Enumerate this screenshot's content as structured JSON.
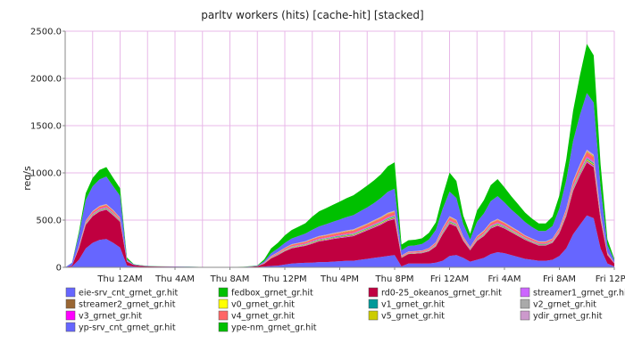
{
  "chart_data": {
    "type": "area",
    "stacked": true,
    "title": "parltv workers (hits) [cache-hit] [stacked]",
    "ylabel": "req/s",
    "xlabel": "",
    "ylim": [
      0,
      2500
    ],
    "yticks": [
      {
        "v": 0,
        "label": "0"
      },
      {
        "v": 500,
        "label": "500.0"
      },
      {
        "v": 1000,
        "label": "1000.0"
      },
      {
        "v": 1500,
        "label": "1500.0"
      },
      {
        "v": 2000,
        "label": "2000.0"
      },
      {
        "v": 2500,
        "label": "2500.0"
      }
    ],
    "xticks": [
      {
        "h": 4,
        "label": "Thu 12AM"
      },
      {
        "h": 8,
        "label": "Thu  4AM"
      },
      {
        "h": 12,
        "label": "Thu  8AM"
      },
      {
        "h": 16,
        "label": "Thu 12PM"
      },
      {
        "h": 20,
        "label": "Thu  4PM"
      },
      {
        "h": 24,
        "label": "Thu  8PM"
      },
      {
        "h": 28,
        "label": "Fri 12AM"
      },
      {
        "h": 32,
        "label": "Fri  4AM"
      },
      {
        "h": 36,
        "label": "Fri  8AM"
      },
      {
        "h": 40,
        "label": "Fri 12PM"
      }
    ],
    "xlim": [
      0,
      40
    ],
    "grid": true,
    "legend_position": "bottom",
    "x_hours": [
      0,
      0.5,
      1,
      1.5,
      2,
      2.5,
      3,
      3.5,
      4,
      4.5,
      5,
      5.5,
      6,
      7,
      8,
      9,
      10,
      11,
      12,
      13,
      14,
      14.5,
      15,
      15.5,
      16,
      16.5,
      17,
      17.5,
      18,
      18.5,
      19,
      19.5,
      20,
      20.5,
      21,
      21.5,
      22,
      22.5,
      23,
      23.5,
      24,
      24.5,
      25,
      25.5,
      26,
      26.5,
      27,
      27.5,
      28,
      28.5,
      29,
      29.5,
      30,
      30.5,
      31,
      31.5,
      32,
      32.5,
      33,
      33.5,
      34,
      34.5,
      35,
      35.5,
      36,
      36.5,
      37,
      37.5,
      38,
      38.5,
      39,
      39.5,
      40
    ],
    "series": [
      {
        "name": "eie-srv_cnt_grnet_gr.hit",
        "color": "#6666ff",
        "values": [
          0,
          8,
          80,
          200,
          260,
          290,
          300,
          260,
          210,
          20,
          8,
          5,
          4,
          3,
          3,
          2,
          1,
          1,
          1,
          1,
          3,
          8,
          14,
          18,
          30,
          40,
          45,
          48,
          50,
          55,
          55,
          60,
          65,
          70,
          70,
          80,
          90,
          100,
          110,
          120,
          130,
          10,
          40,
          40,
          40,
          40,
          50,
          70,
          120,
          130,
          100,
          60,
          80,
          100,
          140,
          160,
          150,
          130,
          110,
          90,
          80,
          70,
          70,
          80,
          120,
          200,
          350,
          450,
          550,
          520,
          200,
          40,
          10
        ]
      },
      {
        "name": "fedbox_grnet_gr.hit",
        "color": "#00c000",
        "values": [
          0,
          0,
          0,
          0,
          0,
          0,
          0,
          0,
          0,
          0,
          0,
          0,
          0,
          0,
          0,
          0,
          0,
          0,
          0,
          0,
          0,
          0,
          0,
          0,
          0,
          0,
          0,
          0,
          0,
          0,
          0,
          0,
          0,
          0,
          0,
          0,
          0,
          0,
          0,
          0,
          0,
          0,
          0,
          0,
          0,
          0,
          0,
          0,
          0,
          0,
          0,
          0,
          0,
          0,
          0,
          0,
          0,
          0,
          0,
          0,
          0,
          0,
          0,
          0,
          0,
          0,
          0,
          0,
          0,
          0,
          0,
          0,
          0
        ]
      },
      {
        "name": "rd0-25_okeanos_grnet_gr.hit",
        "color": "#c00040",
        "values": [
          0,
          10,
          120,
          250,
          280,
          300,
          310,
          290,
          270,
          40,
          15,
          10,
          6,
          5,
          4,
          3,
          1,
          1,
          1,
          2,
          8,
          30,
          80,
          110,
          140,
          160,
          170,
          180,
          200,
          220,
          230,
          240,
          245,
          250,
          260,
          280,
          300,
          320,
          340,
          370,
          380,
          90,
          100,
          105,
          110,
          130,
          170,
          280,
          340,
          300,
          180,
          120,
          200,
          230,
          270,
          280,
          260,
          240,
          220,
          200,
          180,
          160,
          160,
          180,
          240,
          340,
          460,
          520,
          560,
          540,
          300,
          90,
          30
        ]
      },
      {
        "name": "streamer1_grnet_gr.hit",
        "color": "#cc66ff",
        "values": [
          0,
          0,
          2,
          4,
          5,
          5,
          5,
          5,
          4,
          1,
          0,
          0,
          0,
          0,
          0,
          0,
          0,
          0,
          0,
          0,
          0,
          1,
          2,
          3,
          3,
          4,
          4,
          4,
          5,
          5,
          5,
          5,
          6,
          6,
          6,
          6,
          6,
          7,
          7,
          7,
          8,
          2,
          2,
          2,
          2,
          3,
          4,
          6,
          7,
          6,
          4,
          3,
          4,
          5,
          6,
          6,
          6,
          5,
          5,
          4,
          4,
          4,
          4,
          4,
          5,
          7,
          9,
          10,
          11,
          11,
          6,
          2,
          1
        ]
      },
      {
        "name": "streamer2_grnet_gr.hit",
        "color": "#996633",
        "values": [
          0,
          0,
          2,
          4,
          5,
          5,
          5,
          5,
          4,
          1,
          0,
          0,
          0,
          0,
          0,
          0,
          0,
          0,
          0,
          0,
          0,
          1,
          2,
          3,
          3,
          4,
          4,
          4,
          5,
          5,
          5,
          5,
          6,
          6,
          6,
          6,
          6,
          7,
          7,
          7,
          8,
          2,
          2,
          2,
          2,
          3,
          4,
          6,
          7,
          6,
          4,
          3,
          4,
          5,
          6,
          6,
          6,
          5,
          5,
          4,
          4,
          4,
          4,
          4,
          5,
          7,
          9,
          10,
          11,
          11,
          6,
          2,
          1
        ]
      },
      {
        "name": "v0_grnet_gr.hit",
        "color": "#ffff00",
        "values": [
          0,
          0,
          2,
          3,
          4,
          4,
          4,
          4,
          3,
          1,
          0,
          0,
          0,
          0,
          0,
          0,
          0,
          0,
          0,
          0,
          0,
          1,
          2,
          2,
          3,
          3,
          3,
          3,
          4,
          4,
          4,
          4,
          4,
          5,
          5,
          5,
          5,
          5,
          6,
          6,
          6,
          2,
          2,
          2,
          2,
          2,
          3,
          4,
          5,
          5,
          3,
          2,
          3,
          4,
          4,
          5,
          4,
          4,
          4,
          3,
          3,
          3,
          3,
          3,
          4,
          5,
          7,
          8,
          9,
          9,
          5,
          2,
          1
        ]
      },
      {
        "name": "v1_grnet_gr.hit",
        "color": "#009999",
        "values": [
          0,
          0,
          2,
          4,
          5,
          5,
          5,
          5,
          4,
          1,
          0,
          0,
          0,
          0,
          0,
          0,
          0,
          0,
          0,
          0,
          0,
          1,
          2,
          3,
          3,
          4,
          4,
          4,
          5,
          5,
          5,
          5,
          6,
          6,
          6,
          6,
          6,
          7,
          7,
          7,
          8,
          2,
          2,
          2,
          2,
          3,
          4,
          6,
          7,
          6,
          4,
          3,
          4,
          5,
          6,
          6,
          6,
          5,
          5,
          4,
          4,
          4,
          4,
          4,
          5,
          7,
          9,
          10,
          11,
          11,
          6,
          2,
          1
        ]
      },
      {
        "name": "v2_grnet_gr.hit",
        "color": "#aaaaaa",
        "values": [
          0,
          0,
          3,
          5,
          6,
          7,
          7,
          6,
          5,
          1,
          0,
          0,
          0,
          0,
          0,
          0,
          0,
          0,
          0,
          0,
          0,
          1,
          3,
          4,
          4,
          5,
          5,
          6,
          6,
          6,
          7,
          7,
          7,
          8,
          8,
          8,
          8,
          9,
          9,
          10,
          10,
          3,
          3,
          3,
          3,
          4,
          5,
          8,
          9,
          8,
          5,
          4,
          6,
          7,
          8,
          8,
          7,
          7,
          6,
          6,
          5,
          5,
          5,
          5,
          7,
          9,
          12,
          14,
          15,
          15,
          8,
          3,
          1
        ]
      },
      {
        "name": "v3_grnet_gr.hit",
        "color": "#ff00ff",
        "values": [
          0,
          0,
          2,
          3,
          4,
          4,
          4,
          4,
          3,
          1,
          0,
          0,
          0,
          0,
          0,
          0,
          0,
          0,
          0,
          0,
          0,
          1,
          2,
          2,
          3,
          3,
          3,
          3,
          4,
          4,
          4,
          4,
          4,
          5,
          5,
          5,
          5,
          5,
          6,
          6,
          6,
          2,
          2,
          2,
          2,
          2,
          3,
          4,
          5,
          5,
          3,
          2,
          3,
          4,
          4,
          5,
          4,
          4,
          4,
          3,
          3,
          3,
          3,
          3,
          4,
          5,
          7,
          8,
          9,
          9,
          5,
          2,
          1
        ]
      },
      {
        "name": "v4_grnet_gr.hit",
        "color": "#ff6666",
        "values": [
          0,
          0,
          8,
          14,
          18,
          20,
          20,
          18,
          16,
          3,
          1,
          1,
          0,
          0,
          0,
          0,
          0,
          0,
          0,
          0,
          1,
          3,
          8,
          10,
          12,
          14,
          15,
          16,
          18,
          19,
          20,
          21,
          22,
          23,
          24,
          25,
          26,
          27,
          28,
          30,
          30,
          8,
          9,
          9,
          10,
          12,
          15,
          24,
          28,
          25,
          16,
          12,
          18,
          20,
          24,
          25,
          23,
          21,
          19,
          17,
          16,
          14,
          14,
          16,
          20,
          28,
          36,
          42,
          46,
          44,
          24,
          8,
          3
        ]
      },
      {
        "name": "v5_grnet_gr.hit",
        "color": "#cccc00",
        "values": [
          0,
          0,
          2,
          3,
          4,
          4,
          4,
          4,
          3,
          1,
          0,
          0,
          0,
          0,
          0,
          0,
          0,
          0,
          0,
          0,
          0,
          1,
          2,
          2,
          3,
          3,
          3,
          3,
          4,
          4,
          4,
          4,
          4,
          5,
          5,
          5,
          5,
          5,
          6,
          6,
          6,
          2,
          2,
          2,
          2,
          2,
          3,
          4,
          5,
          5,
          3,
          2,
          3,
          4,
          4,
          5,
          4,
          4,
          4,
          3,
          3,
          3,
          3,
          3,
          4,
          5,
          7,
          8,
          9,
          9,
          5,
          2,
          1
        ]
      },
      {
        "name": "ydir_grnet_gr.hit",
        "color": "#cc99cc",
        "values": [
          0,
          0,
          3,
          5,
          6,
          7,
          7,
          6,
          5,
          1,
          0,
          0,
          0,
          0,
          0,
          0,
          0,
          0,
          0,
          0,
          0,
          1,
          3,
          4,
          4,
          5,
          5,
          6,
          6,
          6,
          7,
          7,
          7,
          8,
          8,
          8,
          8,
          9,
          9,
          10,
          10,
          3,
          3,
          3,
          3,
          4,
          5,
          8,
          9,
          8,
          5,
          4,
          6,
          7,
          8,
          8,
          7,
          7,
          6,
          6,
          5,
          5,
          5,
          5,
          7,
          9,
          12,
          14,
          15,
          15,
          8,
          3,
          1
        ]
      },
      {
        "name": "yp-srv_cnt_grnet_gr.hit",
        "color": "#6666ff",
        "values": [
          0,
          30,
          120,
          220,
          260,
          280,
          290,
          250,
          230,
          12,
          6,
          4,
          3,
          2,
          2,
          2,
          1,
          1,
          1,
          2,
          5,
          15,
          30,
          40,
          50,
          60,
          70,
          80,
          90,
          100,
          110,
          120,
          130,
          140,
          150,
          160,
          170,
          180,
          200,
          220,
          230,
          55,
          60,
          60,
          70,
          90,
          130,
          200,
          260,
          230,
          130,
          80,
          150,
          180,
          220,
          240,
          210,
          180,
          160,
          140,
          120,
          110,
          110,
          130,
          200,
          300,
          420,
          520,
          600,
          550,
          280,
          80,
          25
        ]
      },
      {
        "name": "ype-nm_grnet_gr.hit",
        "color": "#00c000",
        "values": [
          0,
          2,
          30,
          70,
          90,
          100,
          100,
          90,
          80,
          20,
          3,
          2,
          2,
          1,
          1,
          1,
          0,
          0,
          0,
          1,
          3,
          20,
          50,
          60,
          80,
          90,
          100,
          110,
          140,
          160,
          170,
          180,
          190,
          200,
          210,
          220,
          230,
          240,
          250,
          270,
          280,
          60,
          60,
          60,
          60,
          70,
          80,
          140,
          200,
          180,
          90,
          60,
          120,
          140,
          170,
          180,
          160,
          140,
          120,
          100,
          90,
          80,
          80,
          100,
          140,
          220,
          320,
          420,
          520,
          500,
          240,
          60,
          15
        ]
      }
    ]
  }
}
